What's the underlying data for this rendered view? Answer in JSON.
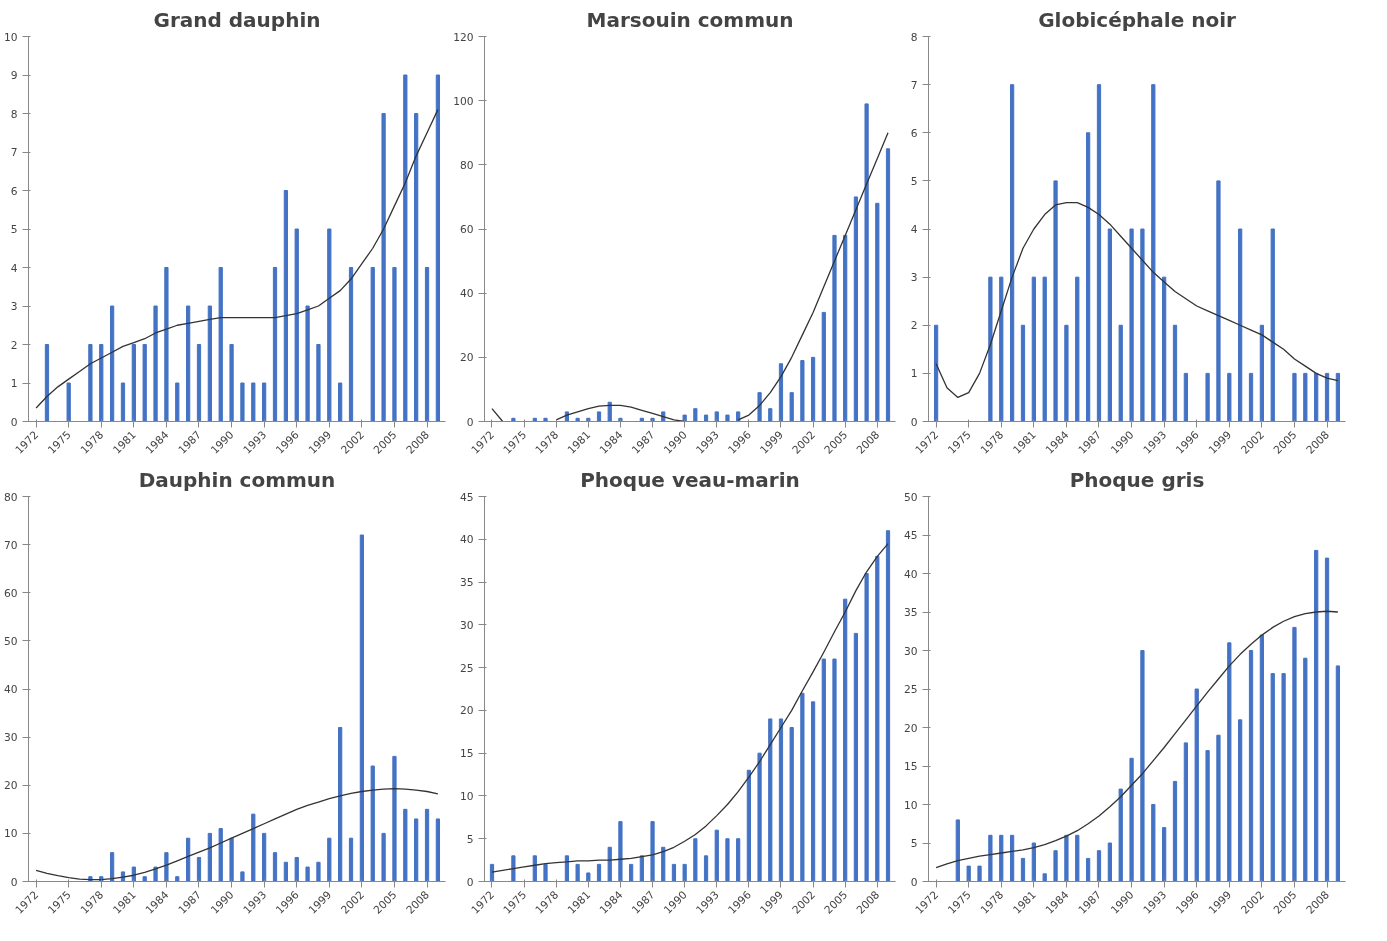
{
  "chart_data": [
    {
      "type": "bar",
      "title": "Grand dauphin",
      "categories": [
        "1972",
        null,
        null,
        "1975",
        null,
        null,
        "1978",
        null,
        null,
        "1981",
        null,
        null,
        "1984",
        null,
        null,
        "1987",
        null,
        null,
        "1990",
        null,
        null,
        "1993",
        null,
        null,
        "1996",
        null,
        null,
        "1999",
        null,
        null,
        "2002",
        null,
        null,
        "2005",
        null,
        null,
        "2008",
        null
      ],
      "ylim": [
        0,
        10
      ],
      "yticks": [
        0,
        1,
        2,
        3,
        4,
        5,
        6,
        7,
        8,
        9,
        10
      ],
      "series": [
        {
          "color": "#4472c4",
          "values": [
            0,
            2,
            0,
            1,
            0,
            2,
            2,
            3,
            1,
            2,
            2,
            3,
            4,
            1,
            3,
            2,
            3,
            4,
            2,
            1,
            1,
            1,
            4,
            6,
            5,
            3,
            2,
            5,
            1,
            4,
            0,
            4,
            8,
            4,
            9,
            8,
            4,
            9
          ]
        },
        {
          "type": "line",
          "color": "#333333",
          "values": [
            0.35,
            0.65,
            0.9,
            1.1,
            1.3,
            1.5,
            1.65,
            1.8,
            1.95,
            2.05,
            2.15,
            2.3,
            2.4,
            2.5,
            2.55,
            2.6,
            2.65,
            2.7,
            2.7,
            2.7,
            2.7,
            2.7,
            2.7,
            2.75,
            2.8,
            2.9,
            3.0,
            3.2,
            3.4,
            3.7,
            4.1,
            4.5,
            5.0,
            5.6,
            6.2,
            6.9,
            7.5,
            8.1
          ]
        }
      ]
    },
    {
      "type": "bar",
      "title": "Marsouin commun",
      "categories": [
        "1972",
        null,
        null,
        "1975",
        null,
        null,
        "1978",
        null,
        null,
        "1981",
        null,
        null,
        "1984",
        null,
        null,
        "1987",
        null,
        null,
        "1990",
        null,
        null,
        "1993",
        null,
        null,
        "1996",
        null,
        null,
        "1999",
        null,
        null,
        "2002",
        null,
        null,
        "2005",
        null,
        null,
        "2008",
        null
      ],
      "ylim": [
        0,
        120
      ],
      "yticks": [
        0,
        20,
        40,
        60,
        80,
        100,
        120
      ],
      "series": [
        {
          "color": "#4472c4",
          "values": [
            0,
            0,
            1,
            0,
            1,
            1,
            0,
            3,
            1,
            1,
            3,
            6,
            1,
            0,
            1,
            1,
            3,
            0,
            2,
            4,
            2,
            3,
            2,
            3,
            0,
            9,
            4,
            18,
            9,
            19,
            20,
            34,
            58,
            58,
            70,
            99,
            68,
            85
          ]
        },
        {
          "type": "line",
          "color": "#333333",
          "values": [
            4,
            0,
            null,
            null,
            null,
            null,
            0.5,
            2,
            3,
            4,
            4.8,
            5,
            5,
            4.5,
            3.5,
            2.5,
            1.5,
            0.5,
            0,
            null,
            null,
            null,
            null,
            0.5,
            2,
            5,
            9,
            14,
            20,
            27,
            34,
            42,
            50,
            58,
            66,
            74,
            82,
            90
          ]
        }
      ]
    },
    {
      "type": "bar",
      "title": "Globicéphale noir",
      "categories": [
        "1972",
        null,
        null,
        "1975",
        null,
        null,
        "1978",
        null,
        null,
        "1981",
        null,
        null,
        "1984",
        null,
        null,
        "1987",
        null,
        null,
        "1990",
        null,
        null,
        "1993",
        null,
        null,
        "1996",
        null,
        null,
        "1999",
        null,
        null,
        "2002",
        null,
        null,
        "2005",
        null,
        null,
        "2008",
        null
      ],
      "ylim": [
        0,
        8
      ],
      "yticks": [
        0,
        1,
        2,
        3,
        4,
        5,
        6,
        7,
        8
      ],
      "series": [
        {
          "color": "#4472c4",
          "values": [
            2,
            0,
            0,
            0,
            0,
            3,
            3,
            7,
            2,
            3,
            3,
            5,
            2,
            3,
            6,
            7,
            4,
            2,
            4,
            4,
            7,
            3,
            2,
            1,
            0,
            1,
            5,
            1,
            4,
            1,
            2,
            4,
            0,
            1,
            1,
            1,
            1,
            1
          ]
        },
        {
          "type": "line",
          "color": "#333333",
          "values": [
            1.2,
            0.7,
            0.5,
            0.6,
            1.0,
            1.6,
            2.3,
            3.0,
            3.6,
            4.0,
            4.3,
            4.5,
            4.55,
            4.55,
            4.45,
            4.3,
            4.1,
            3.85,
            3.6,
            3.35,
            3.1,
            2.9,
            2.7,
            2.55,
            2.4,
            2.3,
            2.2,
            2.1,
            2.0,
            1.9,
            1.8,
            1.65,
            1.5,
            1.3,
            1.15,
            1.0,
            0.9,
            0.85
          ]
        }
      ]
    },
    {
      "type": "bar",
      "title": "Dauphin commun",
      "categories": [
        "1972",
        null,
        null,
        "1975",
        null,
        null,
        "1978",
        null,
        null,
        "1981",
        null,
        null,
        "1984",
        null,
        null,
        "1987",
        null,
        null,
        "1990",
        null,
        null,
        "1993",
        null,
        null,
        "1996",
        null,
        null,
        "1999",
        null,
        null,
        "2002",
        null,
        null,
        "2005",
        null,
        null,
        "2008",
        null
      ],
      "ylim": [
        0,
        80
      ],
      "yticks": [
        0,
        10,
        20,
        30,
        40,
        50,
        60,
        70,
        80
      ],
      "series": [
        {
          "color": "#4472c4",
          "values": [
            0,
            0,
            0,
            0,
            0,
            1,
            1,
            6,
            2,
            3,
            1,
            3,
            6,
            1,
            9,
            5,
            10,
            11,
            9,
            2,
            14,
            10,
            6,
            4,
            5,
            3,
            4,
            9,
            32,
            9,
            72,
            24,
            10,
            26,
            15,
            13,
            15,
            13
          ]
        },
        {
          "type": "line",
          "color": "#333333",
          "values": [
            2.3,
            1.7,
            1.2,
            0.8,
            0.5,
            0.4,
            0.4,
            0.6,
            0.9,
            1.3,
            1.9,
            2.6,
            3.4,
            4.3,
            5.2,
            6.1,
            7.0,
            8.0,
            9.0,
            10,
            11,
            12,
            13,
            14,
            15,
            15.8,
            16.5,
            17.2,
            17.8,
            18.3,
            18.7,
            19,
            19.2,
            19.3,
            19.2,
            19.0,
            18.7,
            18.2
          ]
        }
      ]
    },
    {
      "type": "bar",
      "title": "Phoque veau-marin",
      "categories": [
        "1972",
        null,
        null,
        "1975",
        null,
        null,
        "1978",
        null,
        null,
        "1981",
        null,
        null,
        "1984",
        null,
        null,
        "1987",
        null,
        null,
        "1990",
        null,
        null,
        "1993",
        null,
        null,
        "1996",
        null,
        null,
        "1999",
        null,
        null,
        "2002",
        null,
        null,
        "2005",
        null,
        null,
        "2008",
        null
      ],
      "ylim": [
        0,
        45
      ],
      "yticks": [
        0,
        5,
        10,
        15,
        20,
        25,
        30,
        35,
        40,
        45
      ],
      "series": [
        {
          "color": "#4472c4",
          "values": [
            2,
            0,
            3,
            0,
            3,
            2,
            0,
            3,
            2,
            1,
            2,
            4,
            7,
            2,
            3,
            7,
            4,
            2,
            2,
            5,
            3,
            6,
            5,
            5,
            13,
            15,
            19,
            19,
            18,
            22,
            21,
            26,
            26,
            33,
            29,
            36,
            38,
            41
          ]
        },
        {
          "type": "line",
          "color": "#333333",
          "values": [
            1.1,
            1.3,
            1.5,
            1.7,
            1.9,
            2.1,
            2.2,
            2.3,
            2.4,
            2.4,
            2.5,
            2.5,
            2.6,
            2.7,
            2.9,
            3.1,
            3.5,
            4.0,
            4.7,
            5.5,
            6.5,
            7.7,
            9.0,
            10.5,
            12.2,
            14,
            16,
            18,
            20,
            22.3,
            24.5,
            26.8,
            29.2,
            31.5,
            34,
            36.2,
            38,
            39.5
          ]
        }
      ]
    },
    {
      "type": "bar",
      "title": "Phoque gris",
      "categories": [
        "1972",
        null,
        null,
        "1975",
        null,
        null,
        "1978",
        null,
        null,
        "1981",
        null,
        null,
        "1984",
        null,
        null,
        "1987",
        null,
        null,
        "1990",
        null,
        null,
        "1993",
        null,
        null,
        "1996",
        null,
        null,
        "1999",
        null,
        null,
        "2002",
        null,
        null,
        "2005",
        null,
        null,
        "2008",
        null
      ],
      "ylim": [
        0,
        50
      ],
      "yticks": [
        0,
        5,
        10,
        15,
        20,
        25,
        30,
        35,
        40,
        45,
        50
      ],
      "series": [
        {
          "color": "#4472c4",
          "values": [
            0,
            0,
            8,
            2,
            2,
            6,
            6,
            6,
            3,
            5,
            1,
            4,
            6,
            6,
            3,
            4,
            5,
            12,
            16,
            30,
            10,
            7,
            13,
            18,
            25,
            17,
            19,
            31,
            21,
            30,
            32,
            27,
            27,
            33,
            29,
            43,
            42,
            28
          ]
        },
        {
          "type": "line",
          "color": "#333333",
          "values": [
            1.8,
            2.3,
            2.7,
            3.0,
            3.3,
            3.5,
            3.7,
            3.9,
            4.1,
            4.4,
            4.8,
            5.3,
            5.9,
            6.6,
            7.5,
            8.5,
            9.7,
            11,
            12.5,
            14,
            15.7,
            17.4,
            19.2,
            21,
            22.8,
            24.6,
            26.3,
            28,
            29.5,
            30.8,
            32,
            33,
            33.8,
            34.4,
            34.8,
            35,
            35.1,
            35
          ]
        }
      ]
    }
  ]
}
